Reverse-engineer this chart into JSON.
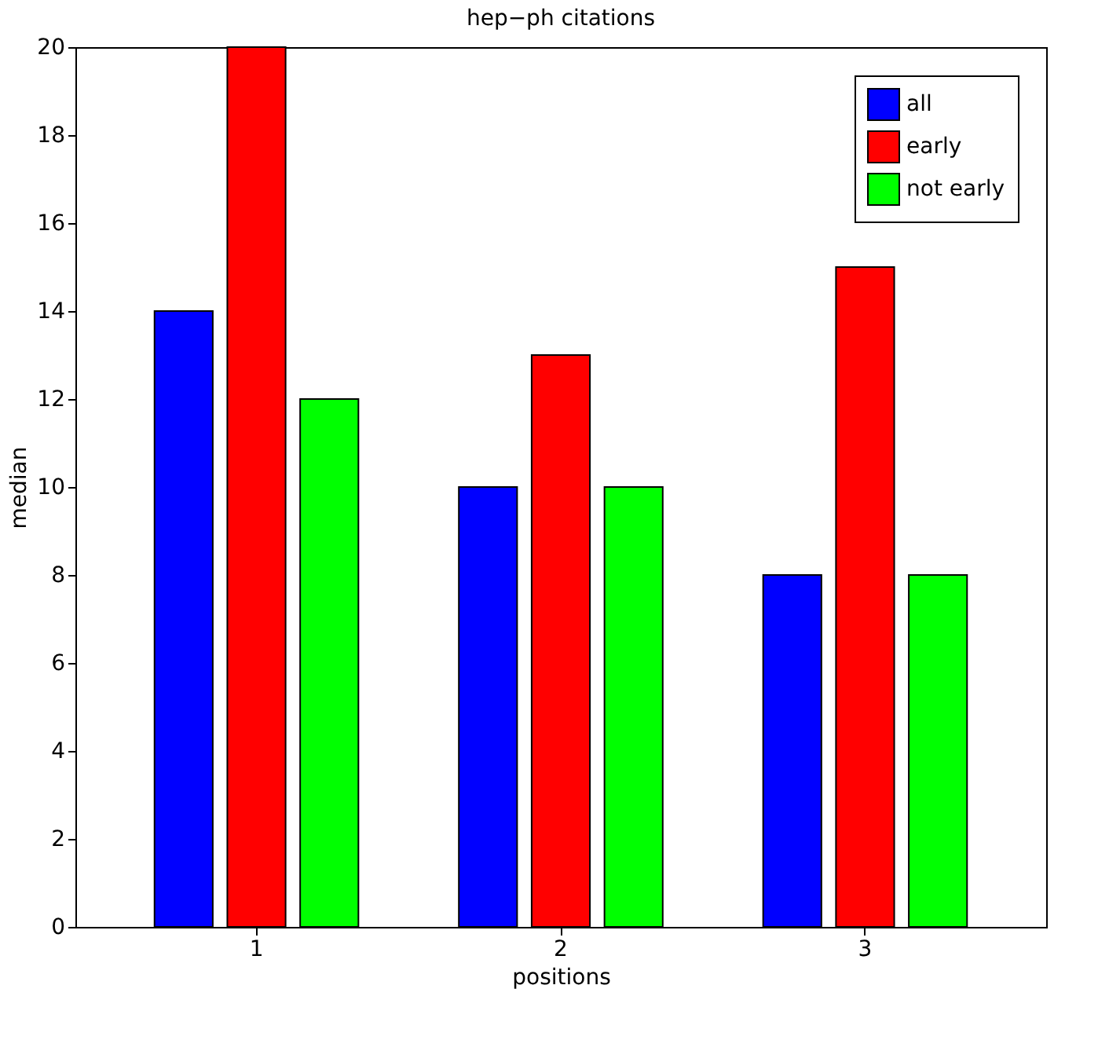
{
  "chart_data": {
    "type": "bar",
    "title": "hep−ph citations",
    "xlabel": "positions",
    "ylabel": "median",
    "categories": [
      "1",
      "2",
      "3"
    ],
    "series": [
      {
        "name": "all",
        "color": "#0000ff",
        "values": [
          14,
          10,
          8
        ]
      },
      {
        "name": "early",
        "color": "#ff0000",
        "values": [
          20,
          13,
          15
        ]
      },
      {
        "name": "not early",
        "color": "#00ff00",
        "values": [
          12,
          10,
          8
        ]
      }
    ],
    "ylim": [
      0,
      20
    ],
    "yticks": [
      0,
      2,
      4,
      6,
      8,
      10,
      12,
      14,
      16,
      18,
      20
    ],
    "grid": false,
    "legend": "top right"
  }
}
